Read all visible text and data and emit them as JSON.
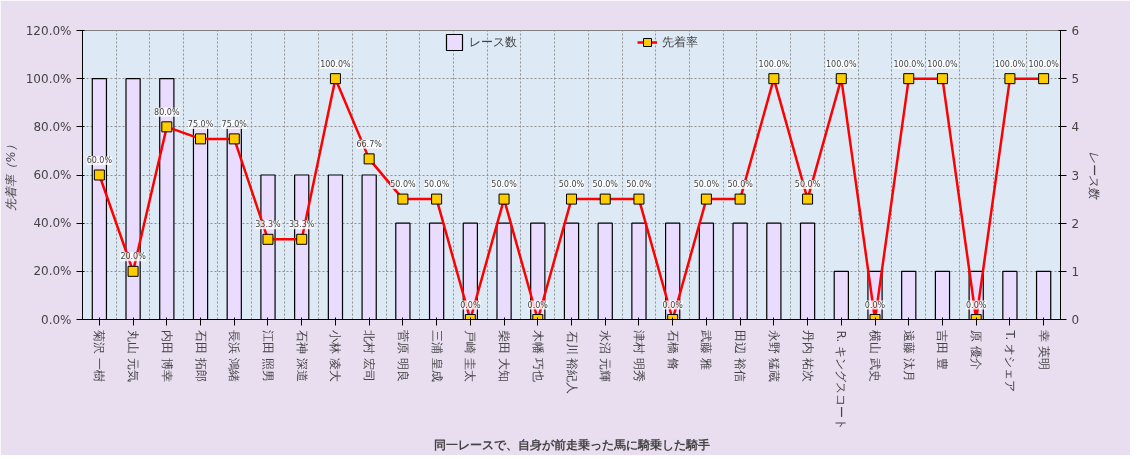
{
  "chart_data": {
    "type": "bar",
    "xlabel": "同一レースで、自身が前走乗った馬に騎乗した騎手",
    "ylabel": "先着率（%）",
    "y2label": "レース数",
    "categories": [
      "菊沢 一樹",
      "丸山 元気",
      "内田 博幸",
      "石田 拓郎",
      "長浜 鴻緒",
      "江田 照男",
      "石神 深道",
      "小林 凌大",
      "北村 宏司",
      "菅原 明良",
      "三浦 皇成",
      "戸崎 圭太",
      "柴田 大知",
      "木幡 巧也",
      "石川 裕紀人",
      "水沼 元輝",
      "津村 明秀",
      "石橋 脩",
      "武藤 雅",
      "田辺 裕信",
      "永野 猛蔵",
      "丹内 祐次",
      "R. キングスコート",
      "横山 武史",
      "遠藤 汰月",
      "吉田 豊",
      "原 優介",
      "T. オシェア",
      "幸 英明"
    ],
    "series": [
      {
        "name": "レース数",
        "axis": "y2",
        "color": "#eadcff",
        "values": [
          5,
          5,
          5,
          4,
          4,
          3,
          3,
          3,
          3,
          2,
          2,
          2,
          2,
          2,
          2,
          2,
          2,
          2,
          2,
          2,
          2,
          2,
          1,
          1,
          1,
          1,
          1,
          1,
          1
        ]
      },
      {
        "name": "先着率",
        "type": "line",
        "color": "#ff0000",
        "marker": "square",
        "values": [
          60,
          20,
          80,
          75,
          75,
          33.3,
          33.3,
          100,
          66.7,
          50,
          50,
          0,
          50,
          0,
          50,
          50,
          50,
          0,
          50,
          50,
          100,
          50,
          100,
          0,
          100,
          100,
          0,
          100,
          100
        ],
        "value_labels": [
          "60.0%",
          "20.0%",
          "80.0%",
          "75.0%",
          "75.0%",
          "33.3%",
          "33.3%",
          "100.0%",
          "66.7%",
          "50.0%",
          "50.0%",
          "0.0%",
          "50.0%",
          "0.0%",
          "50.0%",
          "50.0%",
          "50.0%",
          "0.0%",
          "50.0%",
          "50.0%",
          "100.0%",
          "50.0%",
          "100.0%",
          "0.0%",
          "100.0%",
          "100.0%",
          "0.0%",
          "100.0%",
          "100.0%"
        ]
      }
    ],
    "ylim": [
      0,
      120
    ],
    "yticks": [
      {
        "value": 0,
        "label": "0.0%"
      },
      {
        "value": 20,
        "label": "20.0%"
      },
      {
        "value": 40,
        "label": "40.0%"
      },
      {
        "value": 60,
        "label": "60.0%"
      },
      {
        "value": 80,
        "label": "80.0%"
      },
      {
        "value": 100,
        "label": "100.0%"
      },
      {
        "value": 120,
        "label": "120.0%"
      }
    ],
    "y2lim": [
      0,
      6
    ],
    "y2ticks": [
      0,
      1,
      2,
      3,
      4,
      5,
      6
    ],
    "grid": true,
    "legend": "top"
  }
}
